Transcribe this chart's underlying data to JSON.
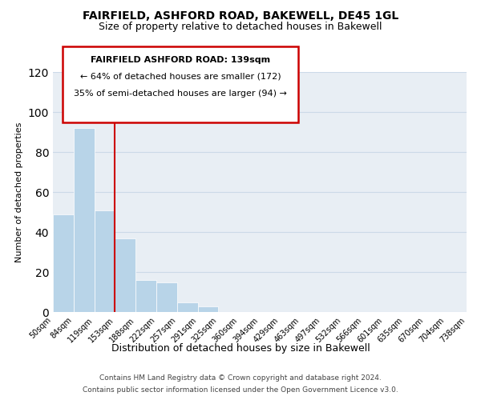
{
  "title": "FAIRFIELD, ASHFORD ROAD, BAKEWELL, DE45 1GL",
  "subtitle": "Size of property relative to detached houses in Bakewell",
  "xlabel": "Distribution of detached houses by size in Bakewell",
  "ylabel": "Number of detached properties",
  "bar_values": [
    49,
    92,
    51,
    37,
    16,
    15,
    5,
    3,
    0,
    0,
    0,
    0,
    0,
    0,
    0,
    0,
    0,
    0,
    0,
    0
  ],
  "tick_labels": [
    "50sqm",
    "84sqm",
    "119sqm",
    "153sqm",
    "188sqm",
    "222sqm",
    "257sqm",
    "291sqm",
    "325sqm",
    "360sqm",
    "394sqm",
    "429sqm",
    "463sqm",
    "497sqm",
    "532sqm",
    "566sqm",
    "601sqm",
    "635sqm",
    "670sqm",
    "704sqm",
    "738sqm"
  ],
  "bar_color": "#b8d4e8",
  "vline_color": "#cc0000",
  "box_text_line1": "FAIRFIELD ASHFORD ROAD: 139sqm",
  "box_text_line2": "← 64% of detached houses are smaller (172)",
  "box_text_line3": "35% of semi-detached houses are larger (94) →",
  "ylim": [
    0,
    120
  ],
  "yticks": [
    0,
    20,
    40,
    60,
    80,
    100,
    120
  ],
  "grid_color": "#ccd9e8",
  "bg_color": "#e8eef4",
  "footer1": "Contains HM Land Registry data © Crown copyright and database right 2024.",
  "footer2": "Contains public sector information licensed under the Open Government Licence v3.0."
}
